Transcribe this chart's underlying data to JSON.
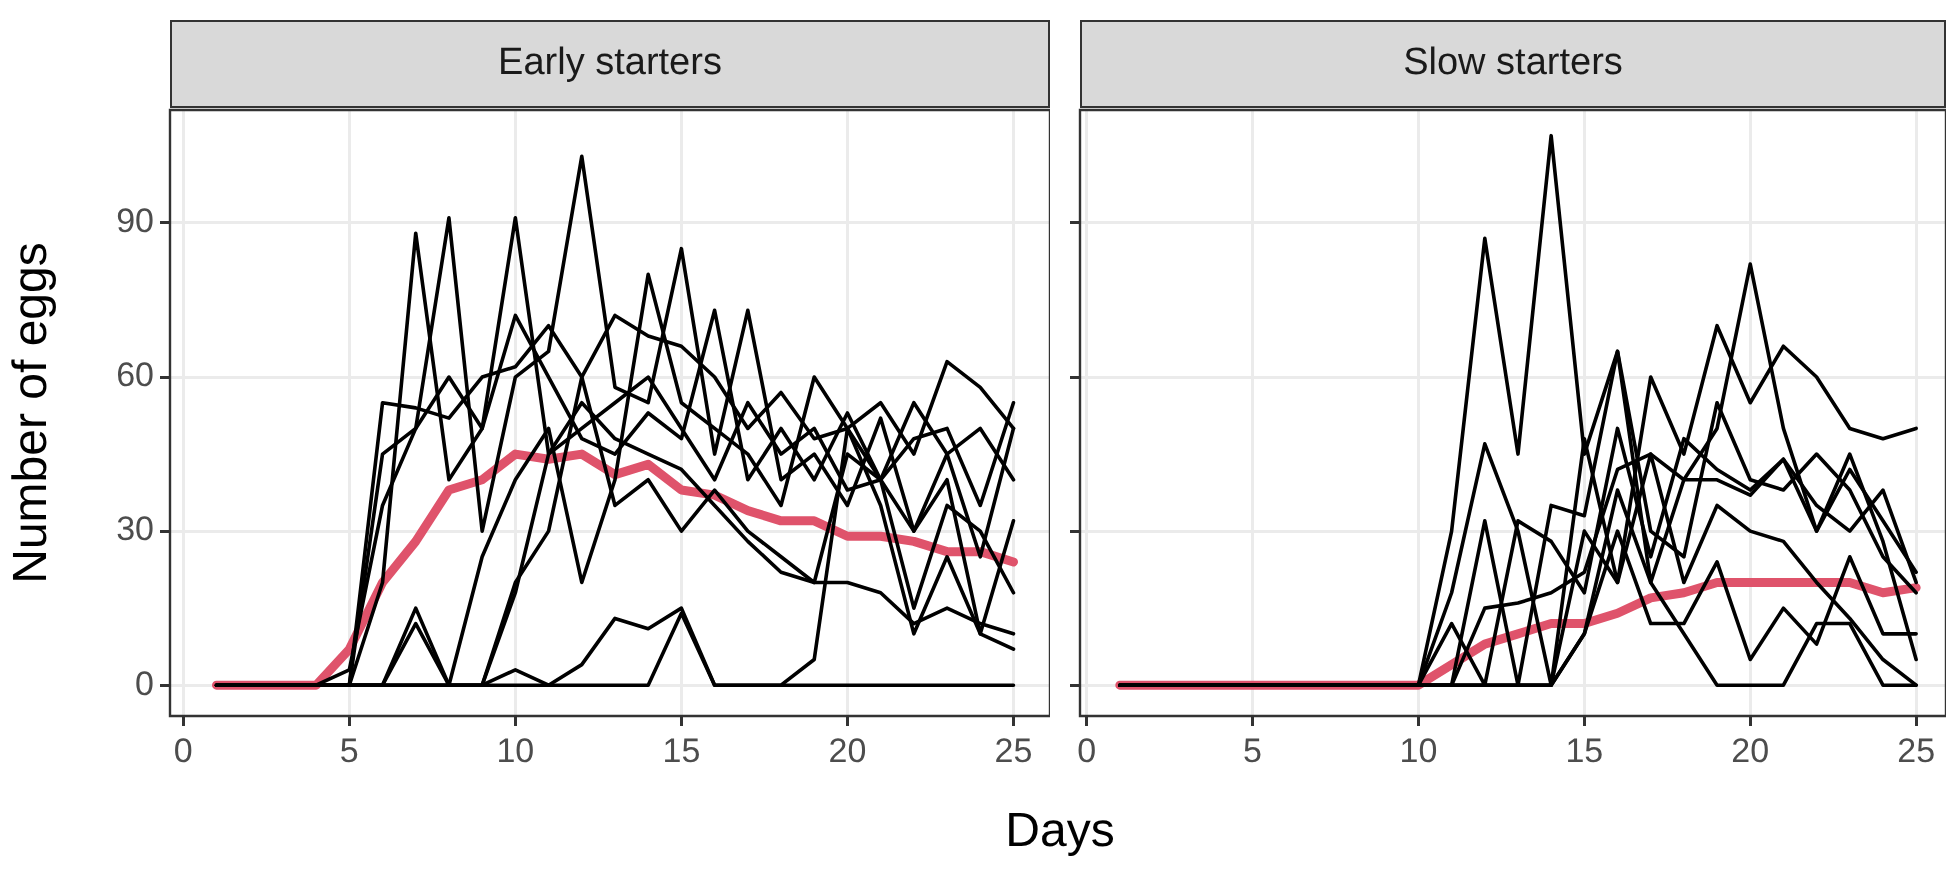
{
  "chart_data": [
    {
      "type": "line",
      "title": "Early starters",
      "xlabel": "Days",
      "ylabel": "Number of eggs",
      "x": [
        1,
        2,
        3,
        4,
        5,
        6,
        7,
        8,
        9,
        10,
        11,
        12,
        13,
        14,
        15,
        16,
        17,
        18,
        19,
        20,
        21,
        22,
        23,
        24,
        25
      ],
      "xlim": [
        -0.4,
        26.1
      ],
      "xticks": [
        0,
        5,
        10,
        15,
        20,
        25
      ],
      "ylim": [
        -6,
        112
      ],
      "yticks": [
        0,
        30,
        60,
        90
      ],
      "grid": true,
      "legend": false,
      "marker": "none",
      "line_style": "solid",
      "series": [
        {
          "color": "#000000",
          "values": [
            0,
            0,
            0,
            0,
            0,
            20,
            88,
            40,
            50,
            91,
            45,
            50,
            55,
            60,
            50,
            40,
            55,
            45,
            50,
            38,
            40,
            55,
            45,
            50,
            40
          ]
        },
        {
          "color": "#000000",
          "values": [
            0,
            0,
            0,
            0,
            0,
            45,
            50,
            91,
            30,
            60,
            65,
            103,
            58,
            55,
            85,
            45,
            73,
            40,
            45,
            35,
            52,
            30,
            45,
            25,
            50
          ]
        },
        {
          "color": "#000000",
          "values": [
            0,
            0,
            0,
            0,
            0,
            55,
            54,
            52,
            60,
            62,
            70,
            60,
            72,
            68,
            66,
            60,
            50,
            57,
            48,
            50,
            55,
            45,
            63,
            58,
            50
          ]
        },
        {
          "color": "#000000",
          "values": [
            0,
            0,
            0,
            0,
            3,
            35,
            50,
            60,
            50,
            72,
            60,
            48,
            45,
            53,
            48,
            73,
            40,
            50,
            40,
            53,
            40,
            48,
            50,
            35,
            55
          ]
        },
        {
          "color": "#000000",
          "values": [
            0,
            0,
            0,
            0,
            0,
            0,
            12,
            0,
            25,
            40,
            50,
            20,
            40,
            80,
            55,
            50,
            45,
            35,
            60,
            50,
            40,
            30,
            40,
            10,
            32
          ]
        },
        {
          "color": "#000000",
          "values": [
            0,
            0,
            0,
            0,
            0,
            0,
            0,
            0,
            0,
            18,
            45,
            55,
            48,
            45,
            42,
            35,
            28,
            22,
            20,
            20,
            18,
            12,
            15,
            12,
            10
          ]
        },
        {
          "color": "#000000",
          "values": [
            0,
            0,
            0,
            0,
            0,
            0,
            0,
            0,
            0,
            3,
            0,
            4,
            13,
            11,
            15,
            0,
            0,
            0,
            5,
            50,
            35,
            10,
            25,
            10,
            7
          ]
        },
        {
          "color": "#000000",
          "values": [
            0,
            0,
            0,
            0,
            0,
            0,
            0,
            0,
            0,
            0,
            0,
            0,
            0,
            0,
            14,
            0,
            0,
            0,
            0,
            0,
            0,
            0,
            0,
            0,
            0
          ]
        },
        {
          "color": "#000000",
          "values": [
            0,
            0,
            0,
            0,
            0,
            0,
            15,
            0,
            0,
            20,
            30,
            60,
            35,
            40,
            30,
            38,
            30,
            25,
            20,
            45,
            40,
            15,
            35,
            30,
            18
          ]
        },
        {
          "color": "#df536b",
          "values": [
            0,
            0,
            0,
            0,
            7,
            20,
            28,
            38,
            40,
            45,
            44,
            45,
            41,
            43,
            38,
            37,
            34,
            32,
            32,
            29,
            29,
            28,
            26,
            26,
            24
          ]
        }
      ]
    },
    {
      "type": "line",
      "title": "Slow starters",
      "x": [
        1,
        2,
        3,
        4,
        5,
        6,
        7,
        8,
        9,
        10,
        11,
        12,
        13,
        14,
        15,
        16,
        17,
        18,
        19,
        20,
        21,
        22,
        23,
        24,
        25
      ],
      "xlim": [
        -0.2,
        25.9
      ],
      "xticks": [
        0,
        5,
        10,
        15,
        20,
        25
      ],
      "ylim": [
        -6,
        112
      ],
      "yticks": [
        0,
        30,
        60,
        90
      ],
      "tick_labels": "x",
      "grid": true,
      "legend": false,
      "marker": "none",
      "line_style": "solid",
      "series": [
        {
          "color": "#000000",
          "values": [
            0,
            0,
            0,
            0,
            0,
            0,
            0,
            0,
            0,
            0,
            30,
            87,
            45,
            107,
            45,
            65,
            20,
            40,
            50,
            82,
            50,
            30,
            45,
            28,
            5
          ]
        },
        {
          "color": "#000000",
          "values": [
            0,
            0,
            0,
            0,
            0,
            0,
            0,
            0,
            0,
            0,
            18,
            47,
            30,
            0,
            48,
            20,
            60,
            45,
            70,
            55,
            66,
            60,
            50,
            48,
            50
          ]
        },
        {
          "color": "#000000",
          "values": [
            0,
            0,
            0,
            0,
            0,
            0,
            0,
            0,
            0,
            0,
            0,
            32,
            0,
            35,
            33,
            65,
            30,
            25,
            55,
            40,
            38,
            45,
            38,
            25,
            18
          ]
        },
        {
          "color": "#000000",
          "values": [
            0,
            0,
            0,
            0,
            0,
            0,
            0,
            0,
            0,
            0,
            12,
            0,
            32,
            28,
            18,
            50,
            25,
            48,
            42,
            38,
            44,
            30,
            42,
            32,
            22
          ]
        },
        {
          "color": "#000000",
          "values": [
            0,
            0,
            0,
            0,
            0,
            0,
            0,
            0,
            0,
            0,
            0,
            15,
            16,
            18,
            22,
            42,
            45,
            40,
            40,
            37,
            44,
            35,
            30,
            38,
            20
          ]
        },
        {
          "color": "#000000",
          "values": [
            0,
            0,
            0,
            0,
            0,
            0,
            0,
            0,
            0,
            0,
            0,
            0,
            0,
            0,
            10,
            30,
            12,
            12,
            24,
            5,
            15,
            8,
            25,
            10,
            10
          ]
        },
        {
          "color": "#000000",
          "values": [
            0,
            0,
            0,
            0,
            0,
            0,
            0,
            0,
            0,
            0,
            0,
            0,
            0,
            0,
            10,
            38,
            20,
            10,
            0,
            0,
            0,
            12,
            12,
            0,
            0
          ]
        },
        {
          "color": "#000000",
          "values": [
            0,
            0,
            0,
            0,
            0,
            0,
            0,
            0,
            0,
            0,
            0,
            0,
            0,
            0,
            30,
            20,
            45,
            20,
            35,
            30,
            28,
            20,
            13,
            5,
            0
          ]
        },
        {
          "color": "#df536b",
          "values": [
            0,
            0,
            0,
            0,
            0,
            0,
            0,
            0,
            0,
            0,
            4,
            8,
            10,
            12,
            12,
            14,
            17,
            18,
            20,
            20,
            20,
            20,
            20,
            18,
            19
          ]
        }
      ]
    }
  ]
}
